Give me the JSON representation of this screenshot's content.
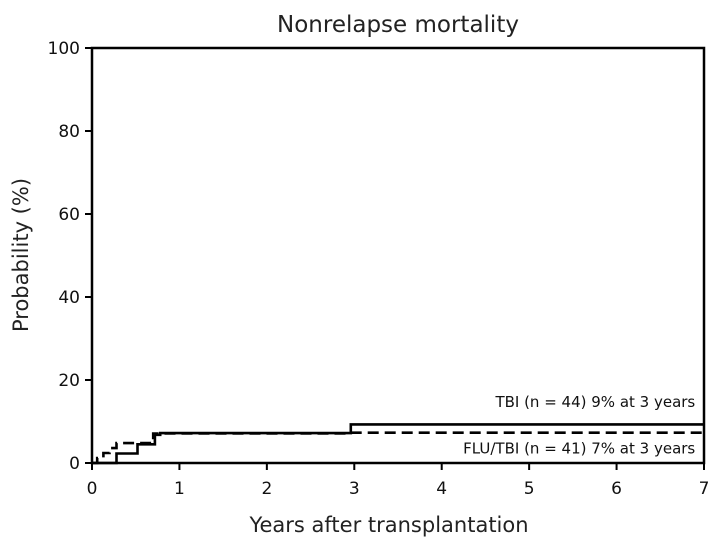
{
  "chart_data": {
    "type": "line",
    "title": "Nonrelapse mortality",
    "xlabel": "Years after transplantation",
    "ylabel": "Probability (%)",
    "xlim": [
      0,
      7
    ],
    "ylim": [
      0,
      100
    ],
    "xticks": [
      0,
      1,
      2,
      3,
      4,
      5,
      6,
      7
    ],
    "yticks": [
      0,
      20,
      40,
      60,
      80,
      100
    ],
    "grid": false,
    "series": [
      {
        "name": "TBI (n = 44) 9% at 3 years",
        "line_style": "solid",
        "color": "#000000",
        "x": [
          0,
          0.28,
          0.28,
          0.52,
          0.52,
          0.72,
          0.72,
          0.78,
          0.78,
          2.96,
          2.96,
          7
        ],
        "y": [
          0,
          0,
          2.3,
          2.3,
          4.5,
          4.5,
          6.8,
          6.8,
          7.2,
          7.2,
          9.3,
          9.3
        ]
      },
      {
        "name": "FLU/TBI (n = 41) 7% at 3 years",
        "line_style": "dashed",
        "color": "#000000",
        "x": [
          0,
          0.06,
          0.06,
          0.13,
          0.13,
          0.2,
          0.2,
          0.28,
          0.28,
          0.7,
          0.7,
          2.95,
          2.95,
          7
        ],
        "y": [
          0,
          0,
          1.2,
          1.2,
          2.4,
          2.4,
          3.6,
          3.6,
          4.8,
          4.8,
          7.1,
          7.1,
          7.3,
          7.3
        ]
      }
    ],
    "annotations": [
      {
        "text": "TBI (n = 44) 9% at 3 years",
        "x": 6.9,
        "y": 13.5
      },
      {
        "text": "FLU/TBI (n = 41) 7% at 3 years",
        "x": 6.9,
        "y": 2.3
      }
    ]
  }
}
